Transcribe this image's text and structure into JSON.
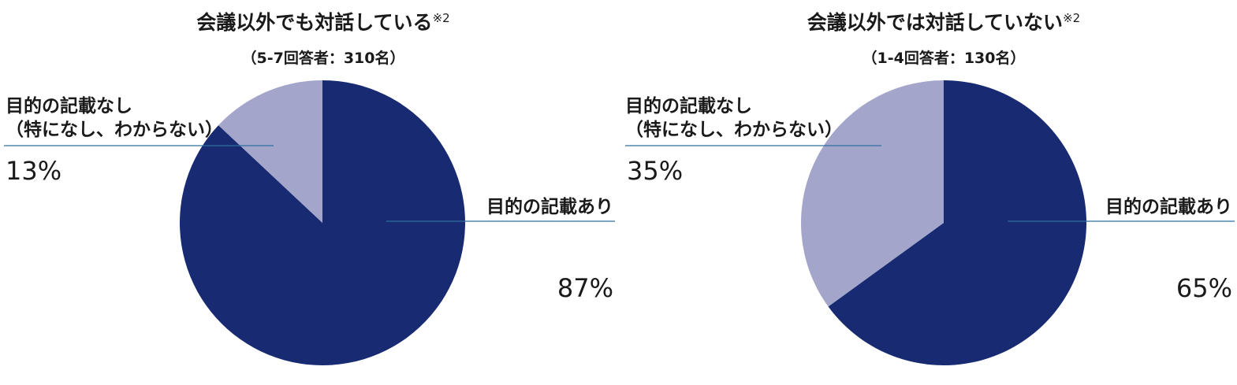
{
  "chart_data": [
    {
      "type": "pie",
      "title": "会議以外でも対話している",
      "title_note": "※2",
      "subtitle": "（5-7回答者：310名）",
      "start_angle_deg": 0,
      "direction": "clockwise",
      "slices": [
        {
          "label": "目的の記載あり",
          "value": 87,
          "value_label": "87%",
          "color": "#172a72"
        },
        {
          "label_lines": [
            "目的の記載なし",
            "（特になし、わからない）"
          ],
          "value": 13,
          "value_label": "13%",
          "color": "#a3a5ca"
        }
      ]
    },
    {
      "type": "pie",
      "title": "会議以外では対話していない",
      "title_note": "※2",
      "subtitle": "（1-4回答者：130名）",
      "start_angle_deg": 0,
      "direction": "clockwise",
      "slices": [
        {
          "label": "目的の記載あり",
          "value": 65,
          "value_label": "65%",
          "color": "#172a72"
        },
        {
          "label_lines": [
            "目的の記載なし",
            "（特になし、わからない）"
          ],
          "value": 35,
          "value_label": "35%",
          "color": "#a3a5ca"
        }
      ]
    }
  ]
}
